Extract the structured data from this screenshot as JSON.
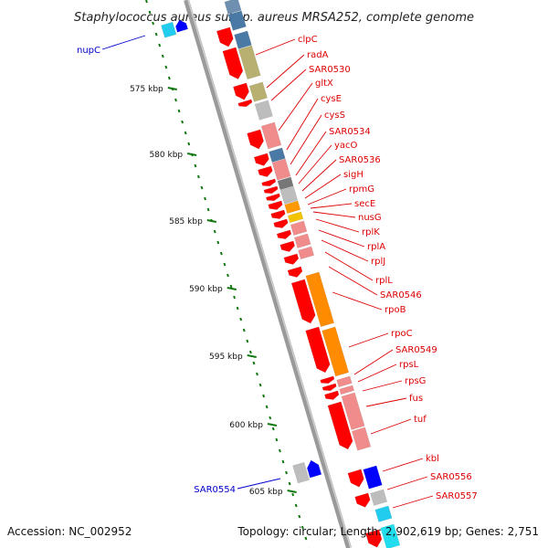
{
  "title": "Staphylococcus aureus subsp. aureus MRSA252, complete genome",
  "footer": {
    "accession": "Accession: NC_002952",
    "stats": "Topology: circular; Length: 2,902,619 bp; Genes: 2,751"
  },
  "colors": {
    "forward_label": "#dd0000",
    "reverse_label": "#0000cc",
    "forward_gene": "#ff0000",
    "reverse_gene": "#0000ff",
    "backbone": "#888888",
    "tick": "#117711"
  },
  "ticks": [
    "575 kbp",
    "580 kbp",
    "585 kbp",
    "590 kbp",
    "595 kbp",
    "600 kbp",
    "605 kbp"
  ],
  "forward_labels": [
    "clpC",
    "radA",
    "SAR0530",
    "gltX",
    "cysE",
    "cysS",
    "SAR0534",
    "yacO",
    "SAR0536",
    "sigH",
    "rpmG",
    "secE",
    "nusG",
    "rplK",
    "rplA",
    "rplJ",
    "rplL",
    "SAR0546",
    "rpoB",
    "rpoC",
    "SAR0549",
    "rpsL",
    "rpsG",
    "fus",
    "tuf",
    "kbl",
    "SAR0556",
    "SAR0557"
  ],
  "reverse_labels": [
    "nupC",
    "SAR0554"
  ]
}
